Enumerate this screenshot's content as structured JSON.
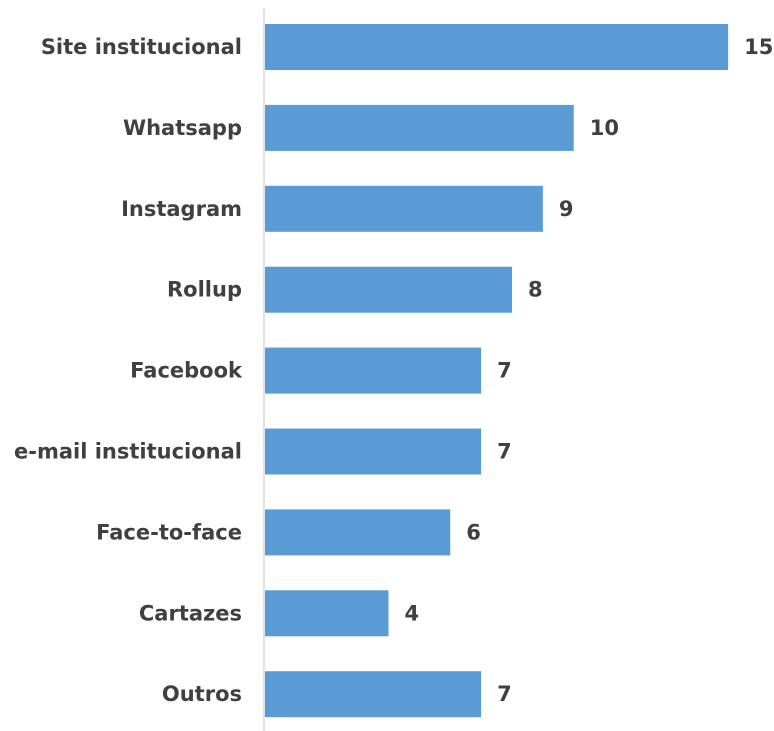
{
  "chart_data": {
    "type": "bar",
    "orientation": "horizontal",
    "categories": [
      "Site institucional",
      "Whatsapp",
      "Instagram",
      "Rollup",
      "Facebook",
      "e-mail institucional",
      "Face-to-face",
      "Cartazes",
      "Outros"
    ],
    "values": [
      15,
      10,
      9,
      8,
      7,
      7,
      6,
      4,
      7
    ],
    "data_labels": [
      "15",
      "10",
      "9",
      "8",
      "7",
      "7",
      "6",
      "4",
      "7"
    ],
    "title": "",
    "xlabel": "",
    "ylabel": "",
    "xlim": [
      0,
      16
    ],
    "grid": false,
    "legend": "none",
    "bar_color": "#5B9BD5",
    "axis_color": "#D9D9D9",
    "text_color": "#404040"
  }
}
